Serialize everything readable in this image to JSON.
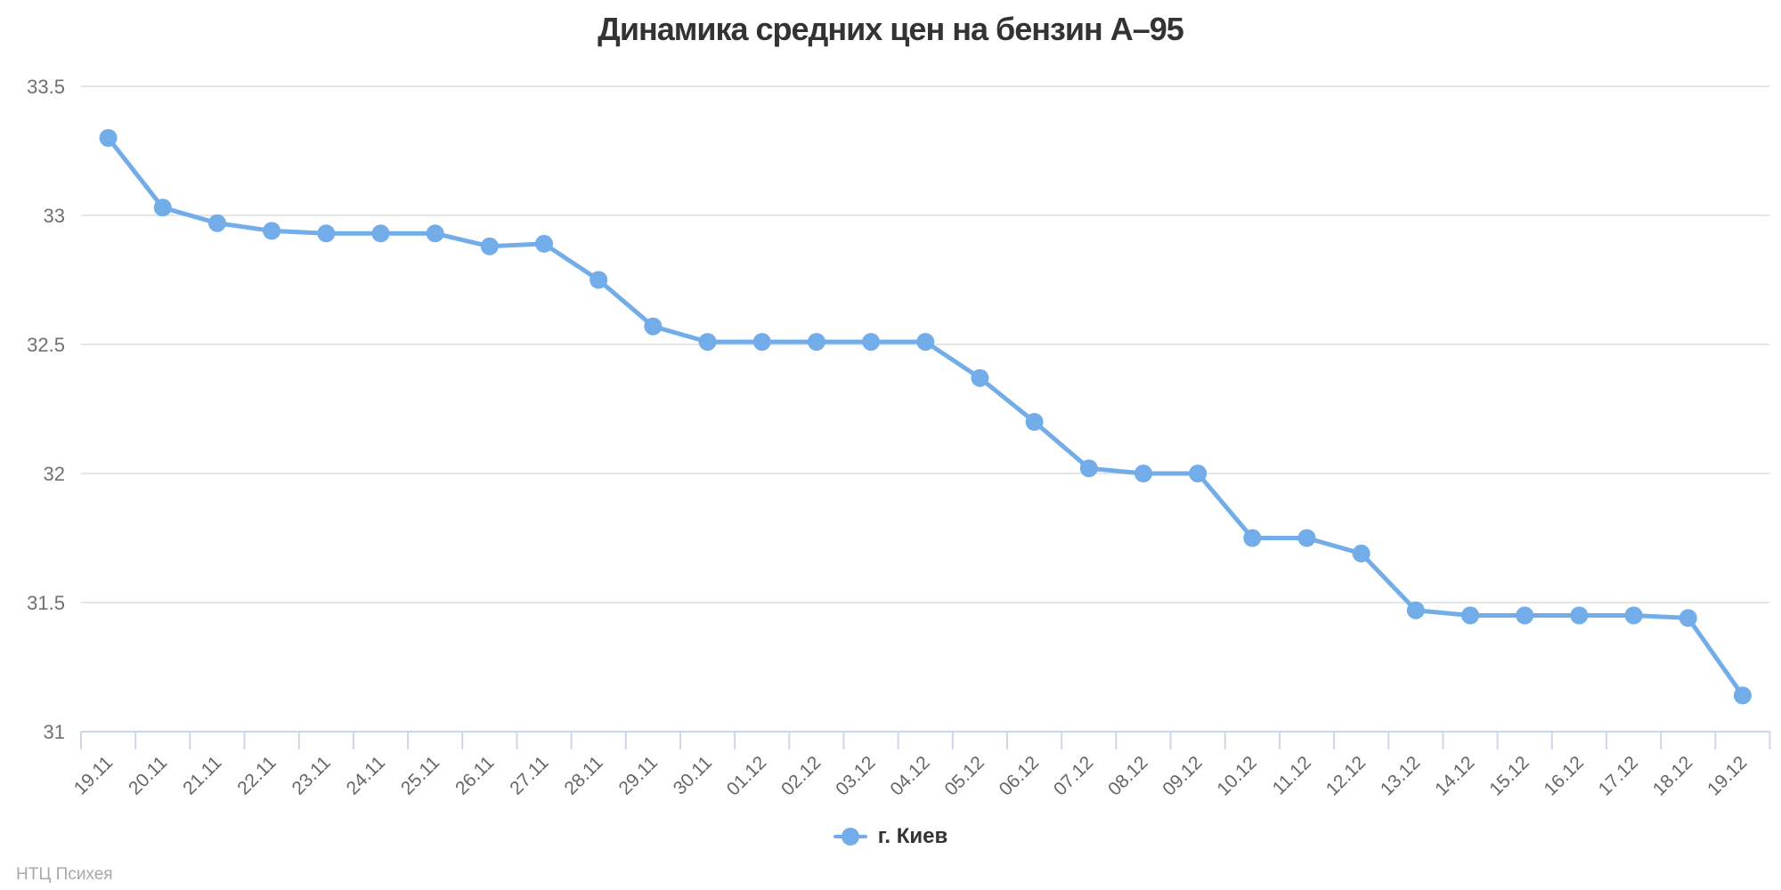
{
  "chart_data": {
    "type": "line",
    "title": "Динамика средних цен на бензин А–95",
    "categories": [
      "19.11",
      "20.11",
      "21.11",
      "22.11",
      "23.11",
      "24.11",
      "25.11",
      "26.11",
      "27.11",
      "28.11",
      "29.11",
      "30.11",
      "01.12",
      "02.12",
      "03.12",
      "04.12",
      "05.12",
      "06.12",
      "07.12",
      "08.12",
      "09.12",
      "10.12",
      "11.12",
      "12.12",
      "13.12",
      "14.12",
      "15.12",
      "16.12",
      "17.12",
      "18.12",
      "19.12"
    ],
    "series": [
      {
        "name": "г. Киев",
        "values": [
          33.3,
          33.03,
          32.97,
          32.94,
          32.93,
          32.93,
          32.93,
          32.88,
          32.89,
          32.75,
          32.57,
          32.51,
          32.51,
          32.51,
          32.51,
          32.51,
          32.37,
          32.2,
          32.02,
          32.0,
          32.0,
          31.75,
          31.75,
          31.69,
          31.47,
          31.45,
          31.45,
          31.45,
          31.45,
          31.44,
          31.14
        ]
      }
    ],
    "xlabel": "",
    "ylabel": "",
    "ylim": [
      31,
      33.5
    ],
    "yticks": [
      33.5,
      33,
      32.5,
      32,
      31.5,
      31
    ],
    "ytick_labels": [
      "33.5",
      "33",
      "32.5",
      "32",
      "31.5",
      "31"
    ],
    "grid": true,
    "legend_position": "bottom",
    "colors": {
      "series": "#72ade9",
      "axis": "#ccd6eb",
      "gridline": "#e6e6e6",
      "title_text": "#333333",
      "ytick_text": "#707070",
      "xtick_text": "#666666",
      "legend_text": "#333333",
      "credits_text": "#a8a8a8",
      "background": "#ffffff"
    }
  },
  "legend": {
    "items": [
      {
        "label": "г. Киев"
      }
    ]
  },
  "credits": {
    "text": "НТЦ Психея"
  }
}
